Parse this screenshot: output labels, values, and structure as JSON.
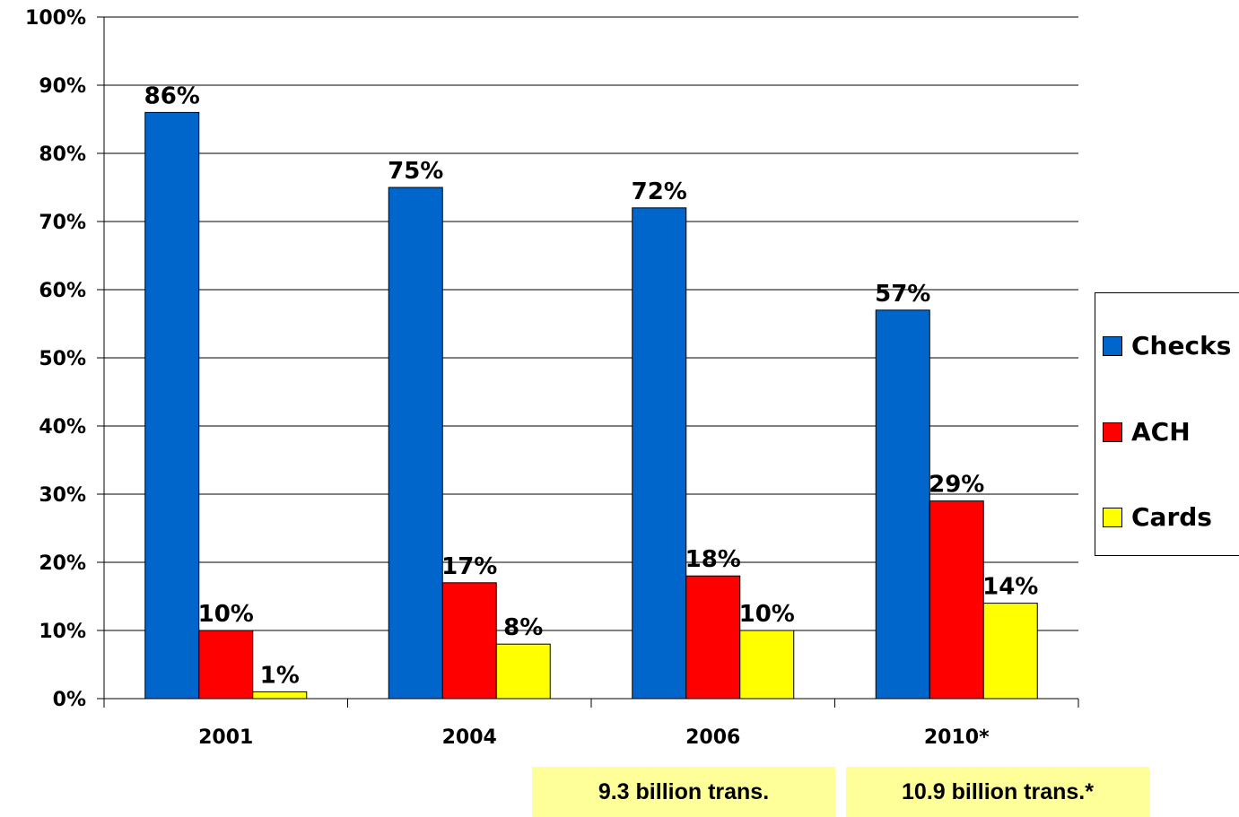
{
  "chart_data": {
    "type": "bar",
    "title": "",
    "xlabel": "",
    "ylabel": "",
    "categories": [
      "2001",
      "2004",
      "2006",
      "2010*"
    ],
    "series": [
      {
        "name": "Checks",
        "color": "#0066cc",
        "values": [
          86,
          75,
          72,
          57
        ],
        "labels": [
          "86%",
          "75%",
          "72%",
          "57%"
        ]
      },
      {
        "name": "ACH",
        "color": "#ff0000",
        "values": [
          10,
          17,
          18,
          29
        ],
        "labels": [
          "10%",
          "17%",
          "18%",
          "29%"
        ]
      },
      {
        "name": "Cards",
        "color": "#ffff00",
        "values": [
          1,
          8,
          10,
          14
        ],
        "labels": [
          "1%",
          "8%",
          "10%",
          "14%"
        ]
      }
    ],
    "ylim": [
      0,
      100
    ],
    "yticks": [
      "0%",
      "10%",
      "20%",
      "30%",
      "40%",
      "50%",
      "60%",
      "70%",
      "80%",
      "90%",
      "100%"
    ],
    "grid": true,
    "legend_position": "right"
  },
  "notes": {
    "note_2006": "9.3 billion trans.",
    "note_2010": "10.9 billion trans.*"
  }
}
